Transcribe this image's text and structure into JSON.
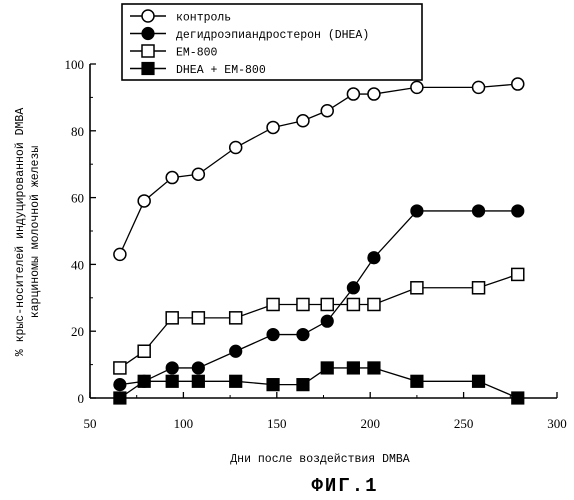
{
  "figure": {
    "caption": "ФИГ.1"
  },
  "chart_data": {
    "type": "line",
    "title": "",
    "xlabel": "Дни после воздействия DMBA",
    "ylabel_line1": "% крыс-носителей индуцированной DMBA",
    "ylabel_line2": "карциномы молочной железы",
    "xlim": [
      50,
      300
    ],
    "ylim": [
      0,
      100
    ],
    "xticks": [
      50,
      100,
      150,
      200,
      250,
      300
    ],
    "yticks": [
      0,
      20,
      40,
      60,
      80,
      100
    ],
    "grid": false,
    "legend_position": "top-left",
    "series": [
      {
        "name": "контроль",
        "marker": "circle-open",
        "x": [
          66,
          79,
          94,
          108,
          128,
          148,
          164,
          177,
          191,
          202,
          225,
          258,
          279
        ],
        "y": [
          43,
          59,
          66,
          67,
          75,
          81,
          83,
          86,
          91,
          91,
          93,
          93,
          94
        ]
      },
      {
        "name": "дегидроэпиандростерон (DHEA)",
        "marker": "circle-filled",
        "x": [
          66,
          79,
          94,
          108,
          128,
          148,
          164,
          177,
          191,
          202,
          225,
          258,
          279
        ],
        "y": [
          4,
          5,
          9,
          9,
          14,
          19,
          19,
          23,
          33,
          42,
          56,
          56,
          56
        ]
      },
      {
        "name": "EM-800",
        "marker": "square-open",
        "x": [
          66,
          79,
          94,
          108,
          128,
          148,
          164,
          177,
          191,
          202,
          225,
          258,
          279
        ],
        "y": [
          9,
          14,
          24,
          24,
          24,
          28,
          28,
          28,
          28,
          28,
          33,
          33,
          37
        ]
      },
      {
        "name": "DHEA + EM-800",
        "marker": "square-filled",
        "x": [
          66,
          79,
          94,
          108,
          128,
          148,
          164,
          177,
          191,
          202,
          225,
          258,
          279
        ],
        "y": [
          0,
          5,
          5,
          5,
          5,
          4,
          4,
          9,
          9,
          9,
          5,
          5,
          0
        ]
      }
    ]
  }
}
